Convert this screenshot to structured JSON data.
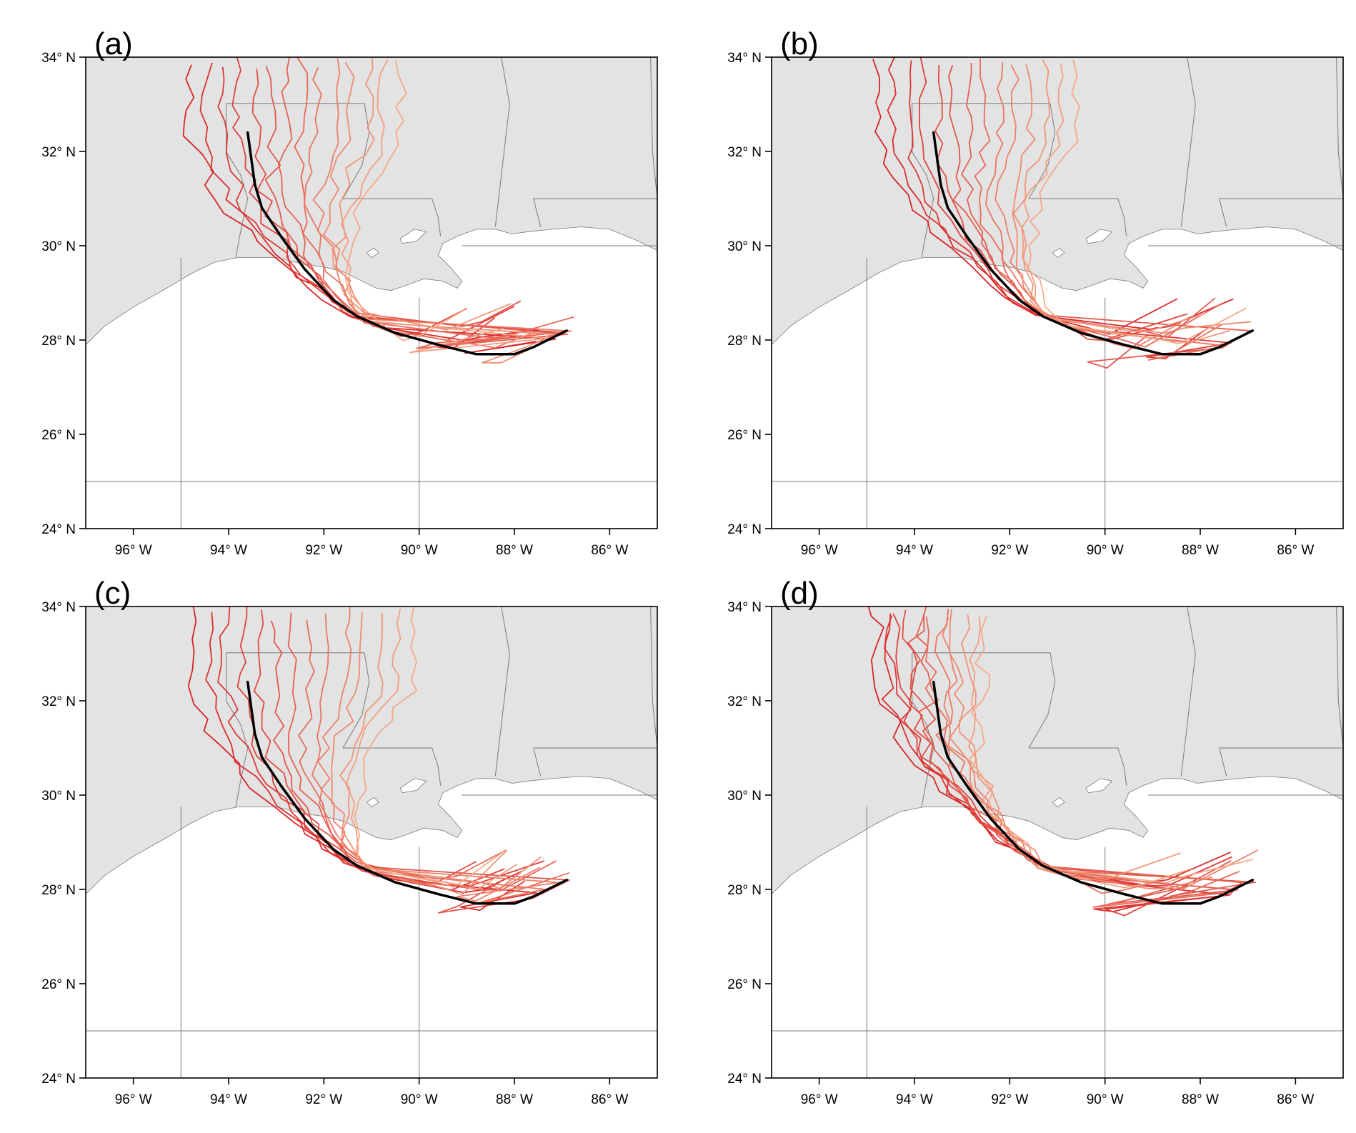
{
  "figure": {
    "lon_range": [
      -97,
      -85
    ],
    "lat_range": [
      24,
      34
    ],
    "colors": {
      "land": "#e3e3e3",
      "ocean": "#ffffff",
      "border": "#7a7a7a",
      "observed_track": "#000000",
      "ensemble_dark": "#d7191c",
      "ensemble_light": "#f4a582"
    },
    "x_ticks": [
      {
        "lon": -96,
        "label": "96° W"
      },
      {
        "lon": -94,
        "label": "94° W"
      },
      {
        "lon": -92,
        "label": "92° W"
      },
      {
        "lon": -90,
        "label": "90° W"
      },
      {
        "lon": -88,
        "label": "88° W"
      },
      {
        "lon": -86,
        "label": "86° W"
      }
    ],
    "y_ticks": [
      {
        "lat": 24,
        "label": "24° N"
      },
      {
        "lat": 26,
        "label": "26° N"
      },
      {
        "lat": 28,
        "label": "28° N"
      },
      {
        "lat": 30,
        "label": "30° N"
      },
      {
        "lat": 32,
        "label": "32° N"
      },
      {
        "lat": 34,
        "label": "34° N"
      }
    ],
    "observed_track": [
      [
        -86.9,
        28.2
      ],
      [
        -87.6,
        27.85
      ],
      [
        -88.0,
        27.7
      ],
      [
        -88.8,
        27.7
      ],
      [
        -89.6,
        27.9
      ],
      [
        -90.5,
        28.15
      ],
      [
        -91.3,
        28.5
      ],
      [
        -91.8,
        28.85
      ],
      [
        -92.4,
        29.5
      ],
      [
        -92.9,
        30.2
      ],
      [
        -93.3,
        30.8
      ],
      [
        -93.45,
        31.3
      ],
      [
        -93.6,
        32.4
      ]
    ]
  },
  "panels": [
    {
      "id": "a",
      "label": "(a)"
    },
    {
      "id": "b",
      "label": "(b)"
    },
    {
      "id": "c",
      "label": "(c)"
    },
    {
      "id": "d",
      "label": "(d)"
    }
  ]
}
